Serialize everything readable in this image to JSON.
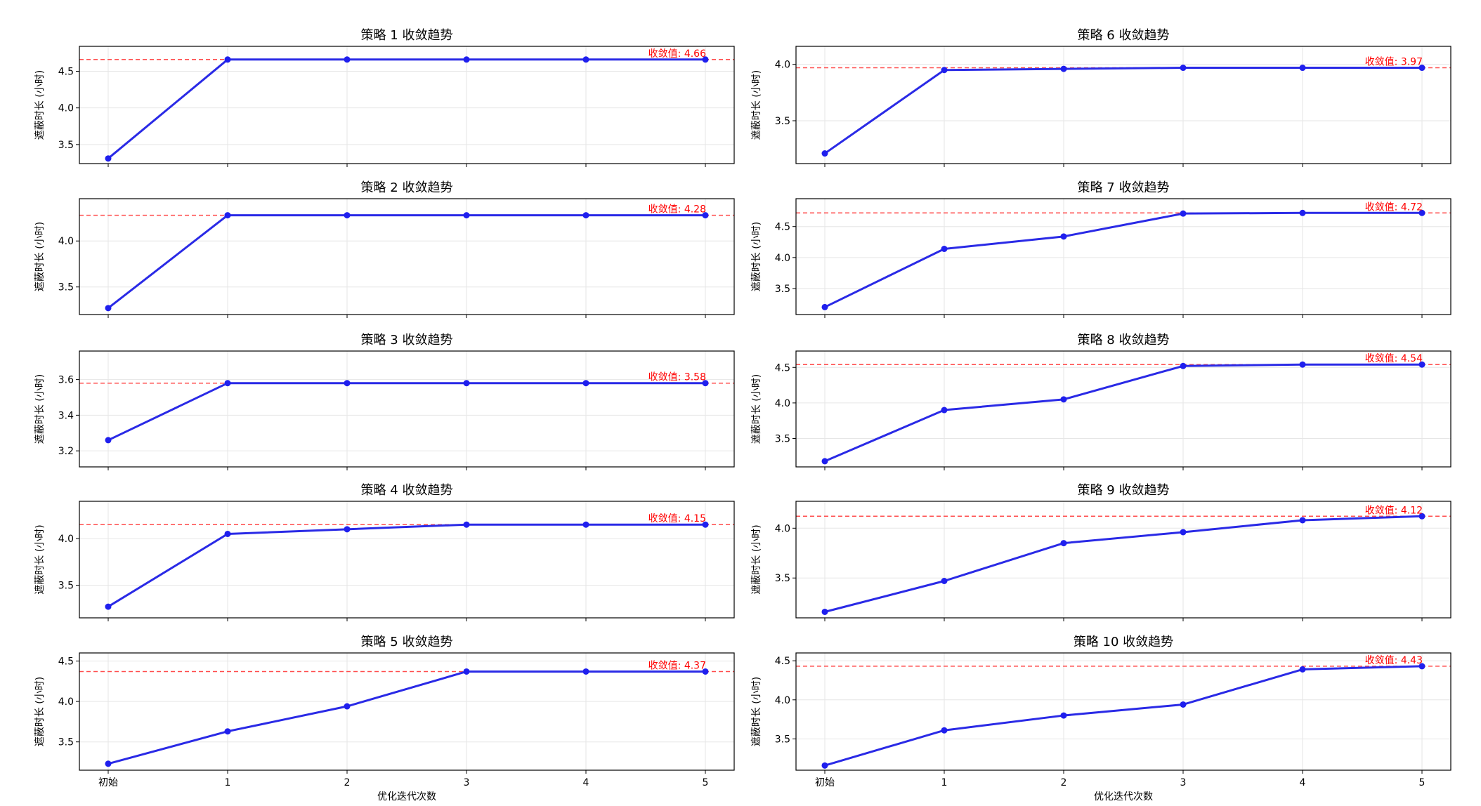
{
  "figure": {
    "xlabel": "优化迭代次数",
    "ylabel": "遮蔽时长 (小时)",
    "colors": {
      "line": "#2a2ae6",
      "point": "#1f1fee",
      "reference": "#ff4d4d",
      "reference_text": "#ff0000",
      "grid": "#e6e6e6"
    }
  },
  "chart_data": [
    {
      "type": "line",
      "title": "策略 1 收敛趋势",
      "categories": [
        "初始",
        "1",
        "2",
        "3",
        "4",
        "5"
      ],
      "values": [
        3.31,
        4.66,
        4.66,
        4.66,
        4.66,
        4.66
      ],
      "reference": 4.66,
      "reference_label": "收敛值: 4.66",
      "yticks": [
        3.5,
        4.0,
        4.5
      ],
      "ytick_labels": [
        "3.5",
        "4.0",
        "4.5"
      ],
      "ylim": [
        3.24,
        4.84
      ],
      "grid": true,
      "show_xticklabels": false,
      "show_xlabel": false
    },
    {
      "type": "line",
      "title": "策略 6 收敛趋势",
      "categories": [
        "初始",
        "1",
        "2",
        "3",
        "4",
        "5"
      ],
      "values": [
        3.21,
        3.95,
        3.96,
        3.97,
        3.97,
        3.97
      ],
      "reference": 3.97,
      "reference_label": "收敛值: 3.97",
      "yticks": [
        3.5,
        4.0
      ],
      "ytick_labels": [
        "3.5",
        "4.0"
      ],
      "ylim": [
        3.12,
        4.16
      ],
      "grid": true,
      "show_xticklabels": false,
      "show_xlabel": false
    },
    {
      "type": "line",
      "title": "策略 2 收敛趋势",
      "categories": [
        "初始",
        "1",
        "2",
        "3",
        "4",
        "5"
      ],
      "values": [
        3.27,
        4.28,
        4.28,
        4.28,
        4.28,
        4.28
      ],
      "reference": 4.28,
      "reference_label": "收敛值: 4.28",
      "yticks": [
        3.5,
        4.0
      ],
      "ytick_labels": [
        "3.5",
        "4.0"
      ],
      "ylim": [
        3.2,
        4.46
      ],
      "grid": true,
      "show_xticklabels": false,
      "show_xlabel": false
    },
    {
      "type": "line",
      "title": "策略 7 收敛趋势",
      "categories": [
        "初始",
        "1",
        "2",
        "3",
        "4",
        "5"
      ],
      "values": [
        3.2,
        4.14,
        4.34,
        4.71,
        4.72,
        4.72
      ],
      "reference": 4.72,
      "reference_label": "收敛值: 4.72",
      "yticks": [
        3.5,
        4.0,
        4.5
      ],
      "ytick_labels": [
        "3.5",
        "4.0",
        "4.5"
      ],
      "ylim": [
        3.08,
        4.95
      ],
      "grid": true,
      "show_xticklabels": false,
      "show_xlabel": false
    },
    {
      "type": "line",
      "title": "策略 3 收敛趋势",
      "categories": [
        "初始",
        "1",
        "2",
        "3",
        "4",
        "5"
      ],
      "values": [
        3.26,
        3.58,
        3.58,
        3.58,
        3.58,
        3.58
      ],
      "reference": 3.58,
      "reference_label": "收敛值: 3.58",
      "yticks": [
        3.2,
        3.4,
        3.6
      ],
      "ytick_labels": [
        "3.2",
        "3.4",
        "3.6"
      ],
      "ylim": [
        3.11,
        3.76
      ],
      "grid": true,
      "show_xticklabels": false,
      "show_xlabel": false
    },
    {
      "type": "line",
      "title": "策略 8 收敛趋势",
      "categories": [
        "初始",
        "1",
        "2",
        "3",
        "4",
        "5"
      ],
      "values": [
        3.18,
        3.9,
        4.05,
        4.52,
        4.54,
        4.54
      ],
      "reference": 4.54,
      "reference_label": "收敛值: 4.54",
      "yticks": [
        3.5,
        4.0,
        4.5
      ],
      "ytick_labels": [
        "3.5",
        "4.0",
        "4.5"
      ],
      "ylim": [
        3.1,
        4.73
      ],
      "grid": true,
      "show_xticklabels": false,
      "show_xlabel": false
    },
    {
      "type": "line",
      "title": "策略 4 收敛趋势",
      "categories": [
        "初始",
        "1",
        "2",
        "3",
        "4",
        "5"
      ],
      "values": [
        3.27,
        4.05,
        4.1,
        4.15,
        4.15,
        4.15
      ],
      "reference": 4.15,
      "reference_label": "收敛值: 4.15",
      "yticks": [
        3.5,
        4.0
      ],
      "ytick_labels": [
        "3.5",
        "4.0"
      ],
      "ylim": [
        3.15,
        4.4
      ],
      "grid": true,
      "show_xticklabels": false,
      "show_xlabel": false
    },
    {
      "type": "line",
      "title": "策略 9 收敛趋势",
      "categories": [
        "初始",
        "1",
        "2",
        "3",
        "4",
        "5"
      ],
      "values": [
        3.16,
        3.47,
        3.85,
        3.96,
        4.08,
        4.12
      ],
      "reference": 4.12,
      "reference_label": "收敛值: 4.12",
      "yticks": [
        3.5,
        4.0
      ],
      "ytick_labels": [
        "3.5",
        "4.0"
      ],
      "ylim": [
        3.1,
        4.27
      ],
      "grid": true,
      "show_xticklabels": false,
      "show_xlabel": false
    },
    {
      "type": "line",
      "title": "策略 5 收敛趋势",
      "categories": [
        "初始",
        "1",
        "2",
        "3",
        "4",
        "5"
      ],
      "values": [
        3.23,
        3.63,
        3.94,
        4.37,
        4.37,
        4.37
      ],
      "reference": 4.37,
      "reference_label": "收敛值: 4.37",
      "yticks": [
        3.5,
        4.0,
        4.5
      ],
      "ytick_labels": [
        "3.5",
        "4.0",
        "4.5"
      ],
      "ylim": [
        3.15,
        4.6
      ],
      "grid": true,
      "show_xticklabels": true,
      "show_xlabel": true
    },
    {
      "type": "line",
      "title": "策略 10 收敛趋势",
      "categories": [
        "初始",
        "1",
        "2",
        "3",
        "4",
        "5"
      ],
      "values": [
        3.16,
        3.61,
        3.8,
        3.94,
        4.39,
        4.43
      ],
      "reference": 4.43,
      "reference_label": "收敛值: 4.43",
      "yticks": [
        3.5,
        4.0,
        4.5
      ],
      "ytick_labels": [
        "3.5",
        "4.0",
        "4.5"
      ],
      "ylim": [
        3.1,
        4.6
      ],
      "grid": true,
      "show_xticklabels": true,
      "show_xlabel": true
    }
  ]
}
